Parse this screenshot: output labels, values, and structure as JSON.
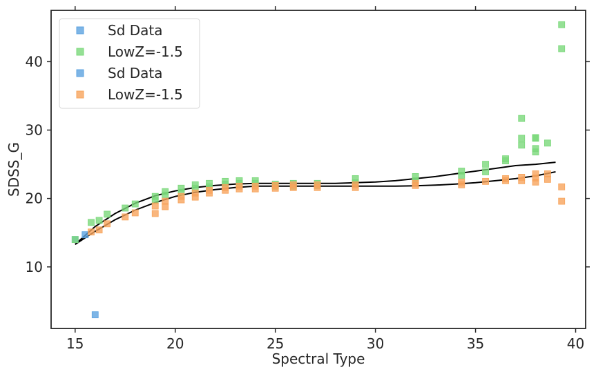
{
  "chart_data": {
    "type": "scatter",
    "title": "",
    "xlabel": "Spectral Type",
    "ylabel": "SDSS_G",
    "xlim": [
      13.8,
      40.5
    ],
    "ylim": [
      1.0,
      47.5
    ],
    "xticks": [
      15,
      20,
      25,
      30,
      35,
      40
    ],
    "yticks": [
      10,
      20,
      30,
      40
    ],
    "grid": false,
    "legend_position": "upper-left",
    "legend": [
      {
        "label": "Sd Data",
        "color": "#5da3e0"
      },
      {
        "label": "LowZ=-1.5",
        "color": "#7bd87b"
      },
      {
        "label": "Sd Data",
        "color": "#5da3e0"
      },
      {
        "label": "LowZ=-1.5",
        "color": "#f7a45c"
      }
    ],
    "series": [
      {
        "name": "Sd Data",
        "kind": "points",
        "color": "#5da3e0",
        "x": [
          15.0,
          15.5,
          16.0
        ],
        "y": [
          14.0,
          14.7,
          3.0
        ]
      },
      {
        "name": "LowZ=-1.5",
        "kind": "points",
        "color": "#7bd87b",
        "x": [
          15.0,
          15.8,
          16.2,
          16.6,
          17.5,
          18.0,
          19.0,
          19.0,
          19.5,
          19.5,
          20.3,
          20.3,
          21.0,
          21.0,
          21.7,
          21.7,
          22.5,
          22.5,
          23.2,
          23.2,
          24.0,
          24.0,
          25.0,
          25.0,
          25.9,
          25.9,
          27.1,
          27.1,
          29.0,
          29.0,
          32.0,
          32.0,
          34.3,
          34.3,
          35.5,
          35.5,
          36.5,
          36.5,
          37.3,
          37.3,
          37.3,
          38.0,
          38.0,
          38.0,
          38.0,
          38.6,
          39.3,
          39.3
        ],
        "y": [
          14.0,
          16.5,
          16.8,
          17.7,
          18.6,
          19.2,
          19.7,
          20.3,
          20.5,
          21.0,
          20.9,
          21.5,
          21.5,
          22.0,
          21.7,
          22.2,
          22.1,
          22.5,
          22.2,
          22.6,
          22.2,
          22.6,
          21.8,
          22.1,
          21.8,
          22.2,
          21.9,
          22.2,
          22.3,
          22.9,
          22.6,
          23.2,
          23.4,
          24.0,
          23.9,
          25.0,
          25.5,
          25.8,
          27.8,
          28.8,
          31.7,
          26.8,
          27.3,
          28.8,
          28.9,
          28.1,
          41.9,
          45.4
        ]
      },
      {
        "name": "LowZ=-1.5",
        "kind": "points",
        "color": "#f7a45c",
        "x": [
          15.8,
          16.2,
          16.6,
          17.5,
          18.0,
          19.0,
          19.0,
          19.5,
          19.5,
          20.3,
          20.3,
          21.0,
          21.0,
          21.7,
          21.7,
          22.5,
          22.5,
          23.2,
          23.2,
          24.0,
          24.0,
          25.0,
          25.0,
          25.9,
          25.9,
          27.1,
          27.1,
          29.0,
          29.0,
          32.0,
          32.0,
          34.3,
          34.3,
          35.5,
          36.5,
          36.5,
          37.3,
          37.3,
          38.0,
          38.0,
          38.0,
          38.6,
          38.6,
          39.3,
          39.3
        ],
        "y": [
          15.1,
          15.4,
          16.3,
          17.3,
          17.9,
          17.8,
          18.9,
          18.8,
          19.6,
          19.8,
          20.3,
          20.2,
          20.8,
          20.8,
          21.2,
          21.2,
          21.6,
          21.4,
          21.8,
          21.4,
          21.8,
          21.5,
          21.9,
          21.6,
          22.0,
          21.6,
          22.0,
          21.6,
          22.0,
          21.9,
          22.2,
          22.0,
          22.4,
          22.5,
          22.6,
          22.9,
          22.6,
          23.1,
          22.4,
          23.0,
          23.6,
          22.8,
          23.6,
          19.6,
          21.7
        ]
      },
      {
        "name": "",
        "kind": "line",
        "color": "#000000",
        "x": [
          15,
          16,
          17,
          18,
          19,
          20,
          21,
          22,
          23,
          24,
          25,
          26,
          27,
          28,
          29,
          30,
          31,
          32,
          33,
          34,
          35,
          36,
          37,
          38,
          39
        ],
        "y": [
          13.3,
          15.2,
          16.9,
          18.3,
          19.4,
          20.3,
          20.9,
          21.3,
          21.6,
          21.8,
          21.8,
          21.8,
          21.8,
          21.8,
          21.8,
          21.8,
          21.8,
          21.85,
          21.95,
          22.1,
          22.3,
          22.6,
          22.9,
          23.3,
          23.9
        ]
      },
      {
        "name": "",
        "kind": "line",
        "color": "#000000",
        "x": [
          15,
          16,
          17,
          18,
          19,
          20,
          21,
          22,
          23,
          24,
          25,
          26,
          27,
          28,
          29,
          30,
          31,
          32,
          33,
          34,
          35,
          36,
          37,
          38,
          39
        ],
        "y": [
          13.3,
          15.9,
          17.8,
          19.3,
          20.4,
          21.1,
          21.6,
          21.9,
          22.1,
          22.2,
          22.2,
          22.2,
          22.2,
          22.2,
          22.3,
          22.4,
          22.6,
          22.9,
          23.2,
          23.6,
          24.0,
          24.4,
          24.8,
          25.0,
          25.3
        ]
      }
    ]
  }
}
